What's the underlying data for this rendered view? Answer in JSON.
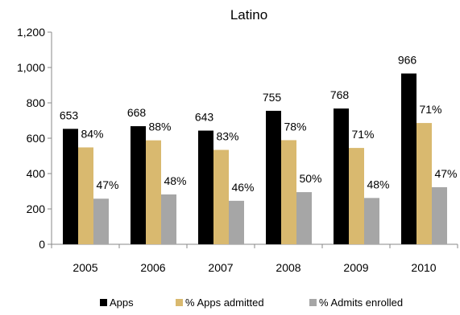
{
  "chart_data": {
    "type": "bar",
    "title": "Latino",
    "xlabel": "",
    "ylabel": "",
    "ylim": [
      0,
      1200
    ],
    "yticks": [
      "0",
      "200",
      "400",
      "600",
      "800",
      "1,000",
      "1,200"
    ],
    "categories": [
      "2005",
      "2006",
      "2007",
      "2008",
      "2009",
      "2010"
    ],
    "grid": false,
    "legend_position": "bottom",
    "series": [
      {
        "name": "Apps",
        "color": "#000000",
        "values": [
          653,
          668,
          643,
          755,
          768,
          966
        ],
        "labels": [
          "653",
          "668",
          "643",
          "755",
          "768",
          "966"
        ]
      },
      {
        "name": "% Apps admitted",
        "color": "#d9b96f",
        "values": [
          548,
          588,
          534,
          589,
          545,
          686
        ],
        "labels": [
          "84%",
          "88%",
          "83%",
          "78%",
          "71%",
          "71%"
        ]
      },
      {
        "name": "% Admits enrolled",
        "color": "#a6a6a6",
        "values": [
          258,
          282,
          246,
          295,
          262,
          323
        ],
        "labels": [
          "47%",
          "48%",
          "46%",
          "50%",
          "48%",
          "47%"
        ]
      }
    ]
  }
}
